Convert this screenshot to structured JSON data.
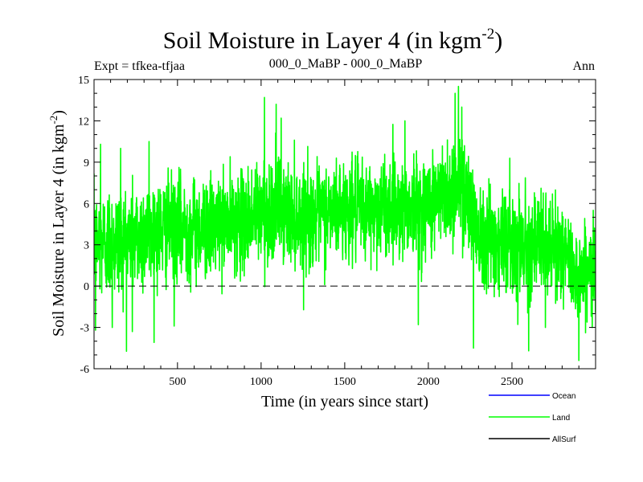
{
  "chart_data": {
    "type": "line",
    "title": "Soil Moisture in Layer 4 (in kgm",
    "title_superscript": "-2",
    "title_suffix": ")",
    "subtitle": "000_0_MaBP - 000_0_MaBP",
    "experiment_label": "Expt = tfkea-tfjaa",
    "season_label": "Ann",
    "xlabel": "Time (in years since start)",
    "ylabel": "Soil Moisture in Layer 4 (in kgm",
    "ylabel_superscript": "-2",
    "ylabel_suffix": ")",
    "xlim": [
      1,
      3000
    ],
    "ylim": [
      -6,
      15
    ],
    "x_ticks": [
      500,
      1000,
      1500,
      2000,
      2500
    ],
    "y_ticks": [
      -6,
      -3,
      0,
      3,
      6,
      9,
      12,
      15
    ],
    "zero_line": "dashed",
    "grid": false,
    "legend_position": "bottom-right",
    "series": [
      {
        "name": "Ocean",
        "color": "#0000ff",
        "values": []
      },
      {
        "name": "Land",
        "color": "#00ff00",
        "envelope_x": [
          0,
          100,
          200,
          300,
          400,
          500,
          600,
          700,
          800,
          900,
          1000,
          1100,
          1200,
          1300,
          1400,
          1500,
          1600,
          1700,
          1800,
          1900,
          2000,
          2100,
          2200,
          2300,
          2400,
          2500,
          2600,
          2700,
          2800,
          2900,
          3000
        ],
        "mean": [
          3.0,
          3.2,
          3.3,
          3.8,
          4.0,
          4.2,
          4.1,
          4.3,
          4.5,
          4.8,
          5.3,
          5.5,
          5.2,
          5.0,
          5.4,
          5.6,
          5.5,
          5.7,
          5.8,
          5.7,
          6.0,
          6.6,
          7.5,
          4.2,
          3.5,
          3.3,
          3.0,
          2.8,
          2.5,
          0.8,
          1.5
        ],
        "spread": [
          3.0,
          3.3,
          3.2,
          3.2,
          3.0,
          3.0,
          2.9,
          2.8,
          2.8,
          2.8,
          3.2,
          3.0,
          2.9,
          2.8,
          2.8,
          2.8,
          2.8,
          2.8,
          2.8,
          2.8,
          2.9,
          3.0,
          3.2,
          3.0,
          3.0,
          3.0,
          3.0,
          2.8,
          2.8,
          2.5,
          2.5
        ],
        "peaks": [
          {
            "x": 40,
            "y": 10.3
          },
          {
            "x": 160,
            "y": 10.0
          },
          {
            "x": 330,
            "y": 10.5
          },
          {
            "x": 1020,
            "y": 13.7
          },
          {
            "x": 1090,
            "y": 13.2
          },
          {
            "x": 1120,
            "y": 12.2
          },
          {
            "x": 1860,
            "y": 12.0
          },
          {
            "x": 2160,
            "y": 14.0
          },
          {
            "x": 2180,
            "y": 14.5
          },
          {
            "x": 2200,
            "y": 13.0
          }
        ],
        "troughs": [
          {
            "x": 10,
            "y": -3.2
          },
          {
            "x": 110,
            "y": -3.0
          },
          {
            "x": 230,
            "y": -3.3
          },
          {
            "x": 480,
            "y": -2.9
          },
          {
            "x": 1940,
            "y": -2.8
          },
          {
            "x": 2270,
            "y": -4.5
          },
          {
            "x": 2600,
            "y": -4.7
          },
          {
            "x": 2700,
            "y": -3.0
          },
          {
            "x": 2900,
            "y": -5.4
          },
          {
            "x": 2980,
            "y": -3.0
          }
        ],
        "n_points": 3000
      },
      {
        "name": "AllSurf",
        "color": "#000000",
        "values": []
      }
    ]
  }
}
